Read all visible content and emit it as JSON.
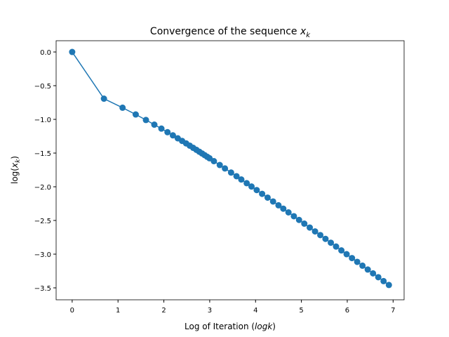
{
  "chart_data": {
    "type": "line",
    "title": [
      "Convergence of the sequence ",
      "x",
      "k"
    ],
    "xlabel": [
      "Log of Iteration (",
      "logk",
      ")"
    ],
    "ylabel": [
      "log(",
      "x",
      "k",
      ")"
    ],
    "color": "#1f77b4",
    "markers": true,
    "x": [
      0,
      0.693,
      1.099,
      1.386,
      1.609,
      1.792,
      1.946,
      2.079,
      2.197,
      2.303,
      2.398,
      2.485,
      2.565,
      2.639,
      2.708,
      2.773,
      2.833,
      2.89,
      2.944,
      2.996,
      3.091,
      3.219,
      3.332,
      3.466,
      3.584,
      3.689,
      3.807,
      3.912,
      4.025,
      4.143,
      4.263,
      4.382,
      4.5,
      4.605,
      4.718,
      4.836,
      4.949,
      5.063,
      5.182,
      5.298,
      5.412,
      5.525,
      5.642,
      5.756,
      5.872,
      5.986,
      6.103,
      6.217,
      6.332,
      6.447,
      6.562,
      6.677,
      6.792,
      6.908
    ],
    "values": [
      0,
      -0.693,
      -0.827,
      -0.927,
      -1.009,
      -1.078,
      -1.137,
      -1.19,
      -1.237,
      -1.281,
      -1.32,
      -1.356,
      -1.39,
      -1.422,
      -1.451,
      -1.48,
      -1.506,
      -1.531,
      -1.555,
      -1.577,
      -1.62,
      -1.677,
      -1.728,
      -1.789,
      -1.843,
      -1.892,
      -1.947,
      -1.996,
      -2.049,
      -2.105,
      -2.161,
      -2.218,
      -2.275,
      -2.325,
      -2.38,
      -2.437,
      -2.492,
      -2.547,
      -2.605,
      -2.662,
      -2.717,
      -2.773,
      -2.83,
      -2.887,
      -2.944,
      -3.0,
      -3.058,
      -3.114,
      -3.171,
      -3.228,
      -3.285,
      -3.342,
      -3.4,
      -3.457
    ],
    "xlim": [
      -0.35,
      7.24
    ],
    "ylim": [
      -3.677,
      0.167
    ],
    "xticks": [
      0,
      1,
      2,
      3,
      4,
      5,
      6,
      7
    ],
    "yticks": [
      {
        "value": 0,
        "label": "0.0"
      },
      {
        "value": -0.5,
        "label": "−0.5"
      },
      {
        "value": -1,
        "label": "−1.0"
      },
      {
        "value": -1.5,
        "label": "−1.5"
      },
      {
        "value": -2,
        "label": "−2.0"
      },
      {
        "value": -2.5,
        "label": "−2.5"
      },
      {
        "value": -3,
        "label": "−3.0"
      },
      {
        "value": -3.5,
        "label": "−3.5"
      }
    ]
  }
}
